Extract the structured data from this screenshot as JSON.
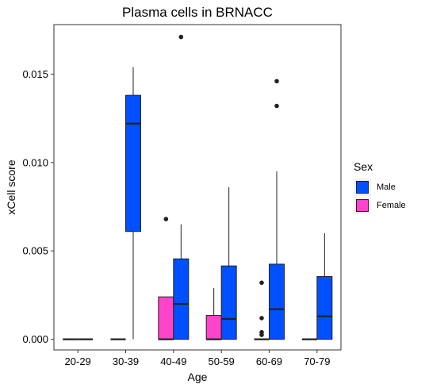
{
  "chart_data": {
    "type": "boxplot",
    "title": "Plasma cells in BRNACC",
    "xlabel": "Age",
    "ylabel": "xCell score",
    "categories": [
      "20-29",
      "30-39",
      "40-49",
      "50-59",
      "60-69",
      "70-79"
    ],
    "yticks": [
      "0.000",
      "0.005",
      "0.010",
      "0.015"
    ],
    "ytick_values": [
      0,
      0.005,
      0.01,
      0.015
    ],
    "ylim": [
      -0.0006,
      0.0178
    ],
    "grid": false,
    "legend": {
      "title": "Sex",
      "placement": "right",
      "entries": [
        {
          "name": "Male",
          "color": "#0050ff"
        },
        {
          "name": "Female",
          "color": "#ff44cc"
        }
      ]
    },
    "series": [
      {
        "name": "Female",
        "color": "#ff44cc",
        "boxes": [
          {
            "category": "20-29",
            "whisker_low": 0,
            "q1": 0,
            "median": 0,
            "q3": 0,
            "whisker_high": 0,
            "outliers": []
          },
          {
            "category": "30-39",
            "whisker_low": 0,
            "q1": 0,
            "median": 0,
            "q3": 0,
            "whisker_high": 0,
            "outliers": []
          },
          {
            "category": "40-49",
            "whisker_low": 0,
            "q1": 0,
            "median": 0,
            "q3": 0.0024,
            "whisker_high": 0.0024,
            "outliers": [
              0.0068
            ]
          },
          {
            "category": "50-59",
            "whisker_low": 0,
            "q1": 0,
            "median": 0,
            "q3": 0.00135,
            "whisker_high": 0.0029,
            "outliers": []
          },
          {
            "category": "60-69",
            "whisker_low": 0,
            "q1": 0,
            "median": 0,
            "q3": 0,
            "whisker_high": 0,
            "outliers": [
              0.0032,
              0.0012,
              0.0004,
              0.00025
            ]
          },
          {
            "category": "70-79",
            "whisker_low": 0,
            "q1": 0,
            "median": 0,
            "q3": 0,
            "whisker_high": 0,
            "outliers": []
          }
        ]
      },
      {
        "name": "Male",
        "color": "#0050ff",
        "boxes": [
          {
            "category": "20-29",
            "whisker_low": 0,
            "q1": 0,
            "median": 0,
            "q3": 0,
            "whisker_high": 0,
            "outliers": []
          },
          {
            "category": "30-39",
            "whisker_low": 0,
            "q1": 0.0061,
            "median": 0.0122,
            "q3": 0.0138,
            "whisker_high": 0.0154,
            "outliers": []
          },
          {
            "category": "40-49",
            "whisker_low": 0,
            "q1": 0,
            "median": 0.002,
            "q3": 0.00455,
            "whisker_high": 0.0065,
            "outliers": [
              0.0171
            ]
          },
          {
            "category": "50-59",
            "whisker_low": 0,
            "q1": 0,
            "median": 0.00115,
            "q3": 0.00415,
            "whisker_high": 0.0086,
            "outliers": []
          },
          {
            "category": "60-69",
            "whisker_low": 0,
            "q1": 0,
            "median": 0.0017,
            "q3": 0.00425,
            "whisker_high": 0.0095,
            "outliers": [
              0.0146,
              0.0132
            ]
          },
          {
            "category": "70-79",
            "whisker_low": 0,
            "q1": 0,
            "median": 0.0013,
            "q3": 0.00355,
            "whisker_high": 0.006,
            "outliers": []
          }
        ]
      }
    ]
  }
}
